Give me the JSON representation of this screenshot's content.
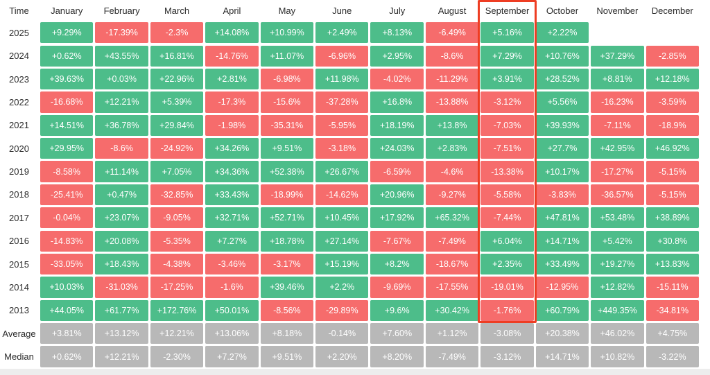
{
  "colors": {
    "positive": "#4dbd8a",
    "negative": "#f66c6c",
    "summary": "#b8b8b8",
    "highlight_border": "#ee3d23",
    "cell_text": "#ffffff",
    "label_text": "#2a2a2a",
    "bottom_strip": "#ededed"
  },
  "chart_data": {
    "type": "heatmap",
    "row_header_label": "Time",
    "columns": [
      "January",
      "February",
      "March",
      "April",
      "May",
      "June",
      "July",
      "August",
      "September",
      "October",
      "November",
      "December"
    ],
    "highlighted_column": "September",
    "value_unit": "%",
    "rows": [
      {
        "label": "2025",
        "values": [
          "+9.29%",
          "-17.39%",
          "-2.3%",
          "+14.08%",
          "+10.99%",
          "+2.49%",
          "+8.13%",
          "-6.49%",
          "+5.16%",
          "+2.22%",
          null,
          null
        ]
      },
      {
        "label": "2024",
        "values": [
          "+0.62%",
          "+43.55%",
          "+16.81%",
          "-14.76%",
          "+11.07%",
          "-6.96%",
          "+2.95%",
          "-8.6%",
          "+7.29%",
          "+10.76%",
          "+37.29%",
          "-2.85%"
        ]
      },
      {
        "label": "2023",
        "values": [
          "+39.63%",
          "+0.03%",
          "+22.96%",
          "+2.81%",
          "-6.98%",
          "+11.98%",
          "-4.02%",
          "-11.29%",
          "+3.91%",
          "+28.52%",
          "+8.81%",
          "+12.18%"
        ]
      },
      {
        "label": "2022",
        "values": [
          "-16.68%",
          "+12.21%",
          "+5.39%",
          "-17.3%",
          "-15.6%",
          "-37.28%",
          "+16.8%",
          "-13.88%",
          "-3.12%",
          "+5.56%",
          "-16.23%",
          "-3.59%"
        ]
      },
      {
        "label": "2021",
        "values": [
          "+14.51%",
          "+36.78%",
          "+29.84%",
          "-1.98%",
          "-35.31%",
          "-5.95%",
          "+18.19%",
          "+13.8%",
          "-7.03%",
          "+39.93%",
          "-7.11%",
          "-18.9%"
        ]
      },
      {
        "label": "2020",
        "values": [
          "+29.95%",
          "-8.6%",
          "-24.92%",
          "+34.26%",
          "+9.51%",
          "-3.18%",
          "+24.03%",
          "+2.83%",
          "-7.51%",
          "+27.7%",
          "+42.95%",
          "+46.92%"
        ]
      },
      {
        "label": "2019",
        "values": [
          "-8.58%",
          "+11.14%",
          "+7.05%",
          "+34.36%",
          "+52.38%",
          "+26.67%",
          "-6.59%",
          "-4.6%",
          "-13.38%",
          "+10.17%",
          "-17.27%",
          "-5.15%"
        ]
      },
      {
        "label": "2018",
        "values": [
          "-25.41%",
          "+0.47%",
          "-32.85%",
          "+33.43%",
          "-18.99%",
          "-14.62%",
          "+20.96%",
          "-9.27%",
          "-5.58%",
          "-3.83%",
          "-36.57%",
          "-5.15%"
        ]
      },
      {
        "label": "2017",
        "values": [
          "-0.04%",
          "+23.07%",
          "-9.05%",
          "+32.71%",
          "+52.71%",
          "+10.45%",
          "+17.92%",
          "+65.32%",
          "-7.44%",
          "+47.81%",
          "+53.48%",
          "+38.89%"
        ]
      },
      {
        "label": "2016",
        "values": [
          "-14.83%",
          "+20.08%",
          "-5.35%",
          "+7.27%",
          "+18.78%",
          "+27.14%",
          "-7.67%",
          "-7.49%",
          "+6.04%",
          "+14.71%",
          "+5.42%",
          "+30.8%"
        ]
      },
      {
        "label": "2015",
        "values": [
          "-33.05%",
          "+18.43%",
          "-4.38%",
          "-3.46%",
          "-3.17%",
          "+15.19%",
          "+8.2%",
          "-18.67%",
          "+2.35%",
          "+33.49%",
          "+19.27%",
          "+13.83%"
        ]
      },
      {
        "label": "2014",
        "values": [
          "+10.03%",
          "-31.03%",
          "-17.25%",
          "-1.6%",
          "+39.46%",
          "+2.2%",
          "-9.69%",
          "-17.55%",
          "-19.01%",
          "-12.95%",
          "+12.82%",
          "-15.11%"
        ]
      },
      {
        "label": "2013",
        "values": [
          "+44.05%",
          "+61.77%",
          "+172.76%",
          "+50.01%",
          "-8.56%",
          "-29.89%",
          "+9.6%",
          "+30.42%",
          "-1.76%",
          "+60.79%",
          "+449.35%",
          "-34.81%"
        ]
      }
    ],
    "summary_rows": [
      {
        "label": "Average",
        "values": [
          "+3.81%",
          "+13.12%",
          "+12.21%",
          "+13.06%",
          "+8.18%",
          "-0.14%",
          "+7.60%",
          "+1.12%",
          "-3.08%",
          "+20.38%",
          "+46.02%",
          "+4.75%"
        ]
      },
      {
        "label": "Median",
        "values": [
          "+0.62%",
          "+12.21%",
          "-2.30%",
          "+7.27%",
          "+9.51%",
          "+2.20%",
          "+8.20%",
          "-7.49%",
          "-3.12%",
          "+14.71%",
          "+10.82%",
          "-3.22%"
        ]
      }
    ],
    "layout": {
      "cell_color_rule": "green = positive return, red = negative return, gray = summary rows",
      "grid": "off",
      "legend": "none"
    }
  }
}
